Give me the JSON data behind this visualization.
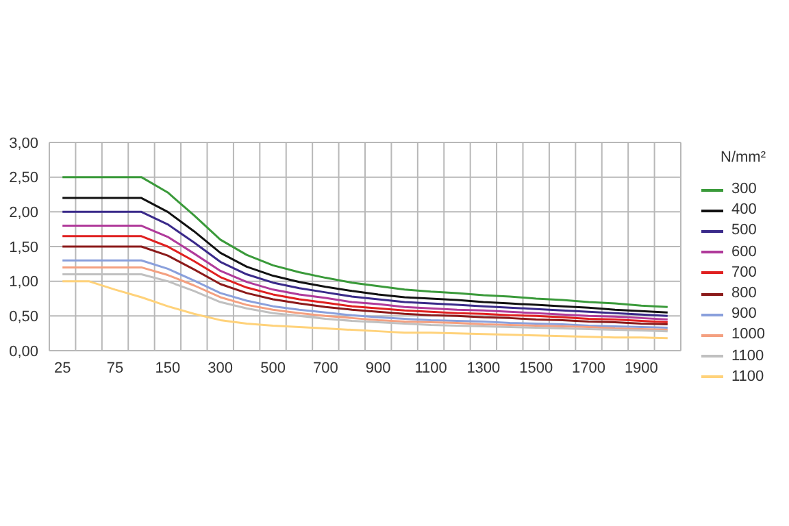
{
  "chart_data": {
    "type": "line",
    "categories": [
      "25",
      null,
      "75",
      null,
      "150",
      null,
      "300",
      null,
      "500",
      null,
      "700",
      null,
      "900",
      null,
      "1100",
      null,
      "1300",
      null,
      "1500",
      null,
      "1700",
      null,
      "1900",
      null
    ],
    "ylim": [
      0,
      3
    ],
    "yticks": [
      {
        "value": 0,
        "label": "0,00"
      },
      {
        "value": 0.5,
        "label": "0,50"
      },
      {
        "value": 1,
        "label": "1,00"
      },
      {
        "value": 1.5,
        "label": "1,50"
      },
      {
        "value": 2,
        "label": "2,00"
      },
      {
        "value": 2.5,
        "label": "2,50"
      },
      {
        "value": 3,
        "label": "3,00"
      }
    ],
    "grid": true,
    "legend": "right",
    "legend_title": "N/mm²",
    "marker": "none",
    "series": [
      {
        "name": "300",
        "color": "#3a9a3a",
        "values": [
          2.5,
          2.5,
          2.5,
          2.5,
          2.28,
          1.95,
          1.6,
          1.38,
          1.23,
          1.13,
          1.05,
          0.98,
          0.93,
          0.88,
          0.85,
          0.83,
          0.8,
          0.78,
          0.75,
          0.73,
          0.7,
          0.68,
          0.65,
          0.63
        ]
      },
      {
        "name": "400",
        "color": "#111111",
        "values": [
          2.2,
          2.2,
          2.2,
          2.2,
          2.0,
          1.72,
          1.41,
          1.21,
          1.08,
          0.99,
          0.92,
          0.86,
          0.81,
          0.77,
          0.75,
          0.73,
          0.7,
          0.68,
          0.66,
          0.64,
          0.62,
          0.59,
          0.57,
          0.55
        ]
      },
      {
        "name": "500",
        "color": "#3a2a8a",
        "values": [
          2.0,
          2.0,
          2.0,
          2.0,
          1.82,
          1.56,
          1.28,
          1.1,
          0.98,
          0.9,
          0.84,
          0.78,
          0.74,
          0.7,
          0.68,
          0.66,
          0.64,
          0.62,
          0.6,
          0.58,
          0.56,
          0.54,
          0.52,
          0.5
        ]
      },
      {
        "name": "600",
        "color": "#b03a9a",
        "values": [
          1.8,
          1.8,
          1.8,
          1.8,
          1.64,
          1.4,
          1.15,
          0.99,
          0.88,
          0.81,
          0.76,
          0.7,
          0.67,
          0.63,
          0.61,
          0.59,
          0.58,
          0.56,
          0.54,
          0.52,
          0.5,
          0.49,
          0.47,
          0.45
        ]
      },
      {
        "name": "700",
        "color": "#e02020",
        "values": [
          1.65,
          1.65,
          1.65,
          1.65,
          1.5,
          1.29,
          1.06,
          0.91,
          0.81,
          0.74,
          0.69,
          0.64,
          0.61,
          0.58,
          0.56,
          0.54,
          0.53,
          0.51,
          0.5,
          0.48,
          0.46,
          0.45,
          0.43,
          0.41
        ]
      },
      {
        "name": "800",
        "color": "#8b1a1a",
        "values": [
          1.5,
          1.5,
          1.5,
          1.5,
          1.37,
          1.17,
          0.96,
          0.83,
          0.74,
          0.68,
          0.63,
          0.59,
          0.56,
          0.53,
          0.51,
          0.5,
          0.48,
          0.47,
          0.45,
          0.44,
          0.42,
          0.41,
          0.39,
          0.38
        ]
      },
      {
        "name": "900",
        "color": "#8aa0dc",
        "values": [
          1.3,
          1.3,
          1.3,
          1.3,
          1.18,
          1.01,
          0.83,
          0.72,
          0.64,
          0.59,
          0.55,
          0.51,
          0.48,
          0.46,
          0.44,
          0.43,
          0.42,
          0.4,
          0.39,
          0.38,
          0.36,
          0.35,
          0.34,
          0.33
        ]
      },
      {
        "name": "1000",
        "color": "#f4a080",
        "values": [
          1.2,
          1.2,
          1.2,
          1.2,
          1.09,
          0.94,
          0.77,
          0.66,
          0.59,
          0.54,
          0.5,
          0.47,
          0.44,
          0.42,
          0.41,
          0.4,
          0.38,
          0.37,
          0.36,
          0.35,
          0.34,
          0.32,
          0.31,
          0.3
        ]
      },
      {
        "name": "1100",
        "color": "#c0c0c0",
        "values": [
          1.1,
          1.1,
          1.1,
          1.1,
          1.0,
          0.86,
          0.7,
          0.61,
          0.54,
          0.5,
          0.46,
          0.43,
          0.41,
          0.39,
          0.37,
          0.36,
          0.35,
          0.34,
          0.33,
          0.32,
          0.31,
          0.3,
          0.29,
          0.28
        ]
      },
      {
        "name": "1100",
        "color": "#ffd27a",
        "values": [
          1.0,
          1.0,
          0.88,
          0.77,
          0.64,
          0.53,
          0.44,
          0.39,
          0.36,
          0.34,
          0.32,
          0.3,
          0.28,
          0.26,
          0.26,
          0.25,
          0.24,
          0.23,
          0.22,
          0.21,
          0.2,
          0.19,
          0.19,
          0.18
        ]
      }
    ]
  }
}
